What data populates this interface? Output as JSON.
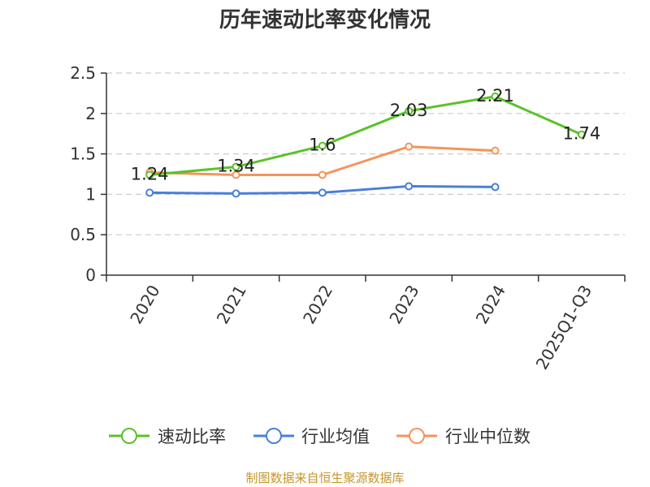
{
  "chart_data": {
    "type": "line",
    "title": "历年速动比率变化情况",
    "categories": [
      "2020",
      "2021",
      "2022",
      "2023",
      "2024",
      "2025Q1-Q3"
    ],
    "ylim": [
      0,
      2.5
    ],
    "yticks": [
      "0",
      "0.5",
      "1",
      "1.5",
      "2",
      "2.5"
    ],
    "grid": true,
    "legend_position": "bottom",
    "series": [
      {
        "name": "速动比率",
        "color": "#5ac229",
        "values": [
          1.24,
          1.34,
          1.6,
          2.03,
          2.21,
          1.74
        ],
        "labels": [
          "1.24",
          "1.34",
          "1.6",
          "2.03",
          "2.21",
          "1.74"
        ]
      },
      {
        "name": "行业均值",
        "color": "#4a7fdb",
        "values": [
          1.02,
          1.01,
          1.02,
          1.1,
          1.09,
          null
        ],
        "labels": []
      },
      {
        "name": "行业中位数",
        "color": "#f5935a",
        "values": [
          1.27,
          1.24,
          1.24,
          1.59,
          1.54,
          null
        ],
        "labels": []
      }
    ],
    "source": "制图数据来自恒生聚源数据库"
  }
}
